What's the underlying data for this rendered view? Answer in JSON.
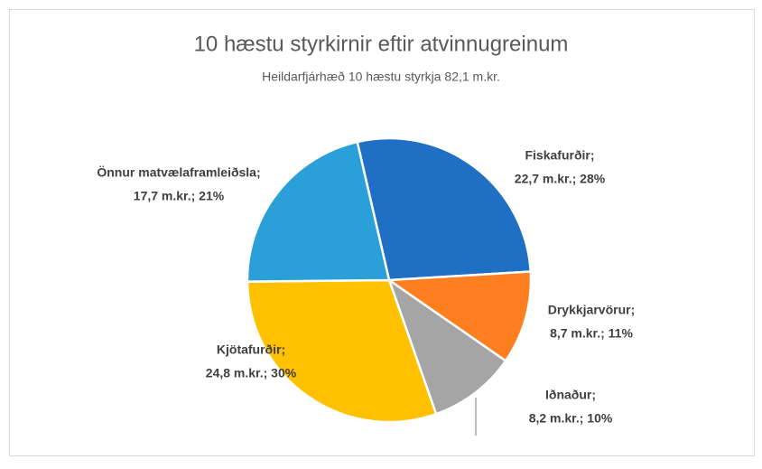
{
  "chart_data": {
    "type": "pie",
    "title": "10 hæstu styrkirnir eftir atvinnugreinum",
    "subtitle": "Heildarfjárhæð 10 hæstu styrkja 82,1 m.kr.",
    "categories": [
      "Fiskafurðir;",
      "Drykkjarvörur;",
      "Iðnaður;",
      "Kjötafurðir;",
      "Önnur matvælaframleiðsla;"
    ],
    "values": [
      22.7,
      8.7,
      8.2,
      24.8,
      17.7
    ],
    "value_labels": [
      "22,7 m.kr.; 28%",
      "8,7 m.kr.; 11%",
      "8,2 m.kr.; 10%",
      "24,8 m.kr.; 30%",
      "17,7 m.kr.; 21%"
    ],
    "colors": [
      "#1f6fc5",
      "#fd7f20",
      "#a5a5a5",
      "#ffc000",
      "#2b9fd8"
    ],
    "start_angle": -13
  }
}
